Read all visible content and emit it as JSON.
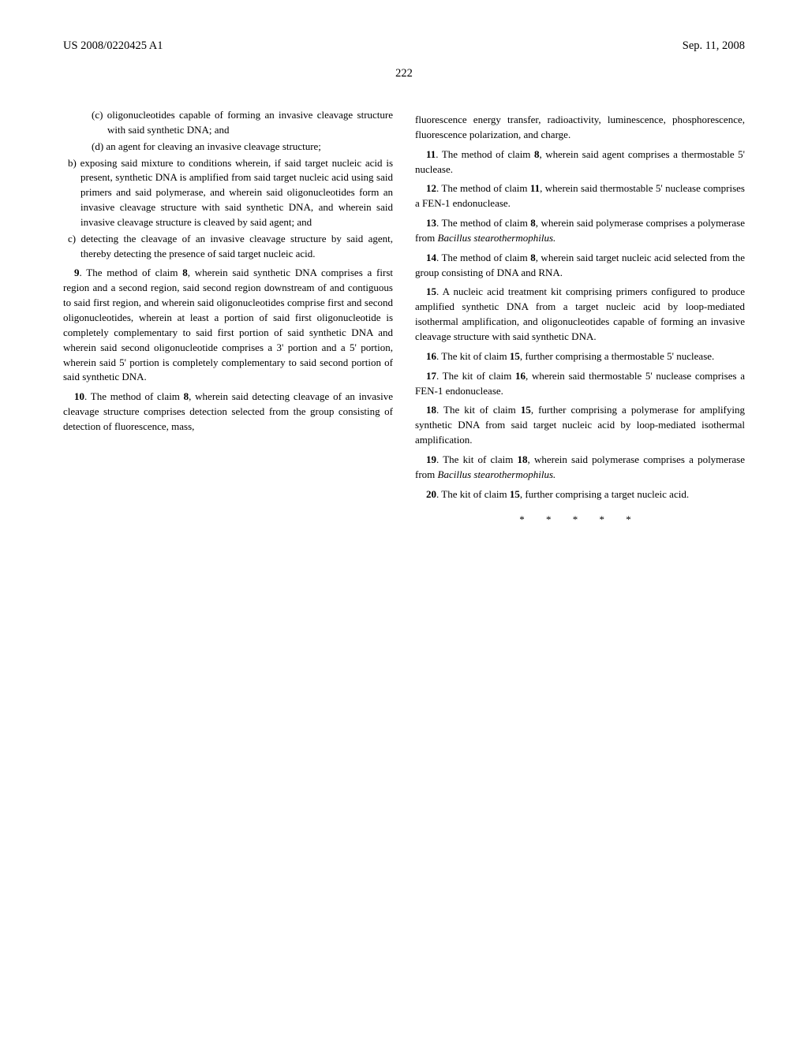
{
  "header": {
    "left": "US 2008/0220425 A1",
    "right": "Sep. 11, 2008"
  },
  "page_number": "222",
  "left_column": {
    "items": [
      {
        "type": "indent2",
        "text": "(c) oligonucleotides capable of forming an invasive cleavage structure with said synthetic DNA; and"
      },
      {
        "type": "indent2",
        "text": "(d) an agent for cleaving an invasive cleavage structure;"
      },
      {
        "type": "indent1",
        "text": "b) exposing said mixture to conditions wherein, if said target nucleic acid is present, synthetic DNA is amplified from said target nucleic acid using said primers and said polymerase, and wherein said oligonucleotides form an invasive cleavage structure with said synthetic DNA, and wherein said invasive cleavage structure is cleaved by said agent; and"
      },
      {
        "type": "indent1",
        "text": "c) detecting the cleavage of an invasive cleavage structure by said agent, thereby detecting the presence of said target nucleic acid."
      }
    ],
    "claim9": {
      "num": "9",
      "ref": "8",
      "text_pre": ". The method of claim ",
      "text_post": ", wherein said synthetic DNA comprises a first region and a second region, said second region downstream of and contiguous to said first region, and wherein said oligonucleotides comprise first and second oligonucleotides, wherein at least a portion of said first oligonucleotide is completely complementary to said first portion of said synthetic DNA and wherein said second oligonucleotide comprises a 3' portion and a 5' portion, wherein said 5' portion is completely complementary to said second portion of said synthetic DNA."
    },
    "claim10": {
      "num": "10",
      "ref": "8",
      "text_pre": ". The method of claim ",
      "text_post": ", wherein said detecting cleavage of an invasive cleavage structure comprises detection selected from the group consisting of detection of fluorescence, mass,"
    }
  },
  "right_column": {
    "lead": "fluorescence energy transfer, radioactivity, luminescence, phosphorescence, fluorescence polarization, and charge.",
    "claim11": {
      "num": "11",
      "ref": "8",
      "pre": ". The method of claim ",
      "post": ", wherein said agent comprises a thermostable 5' nuclease."
    },
    "claim12": {
      "num": "12",
      "ref": "11",
      "pre": ". The method of claim ",
      "post": ", wherein said thermostable 5' nuclease comprises a FEN-1 endonuclease."
    },
    "claim13": {
      "num": "13",
      "ref": "8",
      "pre": ". The method of claim ",
      "post": ", wherein said polymerase comprises a polymerase from ",
      "italic": "Bacillus stearothermophilus.",
      "tail": ""
    },
    "claim14": {
      "num": "14",
      "ref": "8",
      "pre": ". The method of claim ",
      "post": ", wherein said target nucleic acid selected from the group consisting of DNA and RNA."
    },
    "claim15": {
      "num": "15",
      "pre": ". A nucleic acid treatment kit comprising primers configured to produce amplified synthetic DNA from a target nucleic acid by loop-mediated isothermal amplification, and oligonucleotides capable of forming an invasive cleavage structure with said synthetic DNA."
    },
    "claim16": {
      "num": "16",
      "ref": "15",
      "pre": ". The kit of claim ",
      "post": ", further comprising a thermostable 5' nuclease."
    },
    "claim17": {
      "num": "17",
      "ref": "16",
      "pre": ". The kit of claim ",
      "post": ", wherein said thermostable 5' nuclease comprises a FEN-1 endonuclease."
    },
    "claim18": {
      "num": "18",
      "ref": "15",
      "pre": ". The kit of claim ",
      "post": ", further comprising a polymerase for amplifying synthetic DNA from said target nucleic acid by loop-mediated isothermal amplification."
    },
    "claim19": {
      "num": "19",
      "ref": "18",
      "pre": ". The kit of claim ",
      "post": ", wherein said polymerase comprises a polymerase from ",
      "italic": "Bacillus stearothermophilus.",
      "tail": ""
    },
    "claim20": {
      "num": "20",
      "ref": "15",
      "pre": ". The kit of claim ",
      "post": ", further comprising a target nucleic acid."
    }
  },
  "asterisks": "* * * * *"
}
